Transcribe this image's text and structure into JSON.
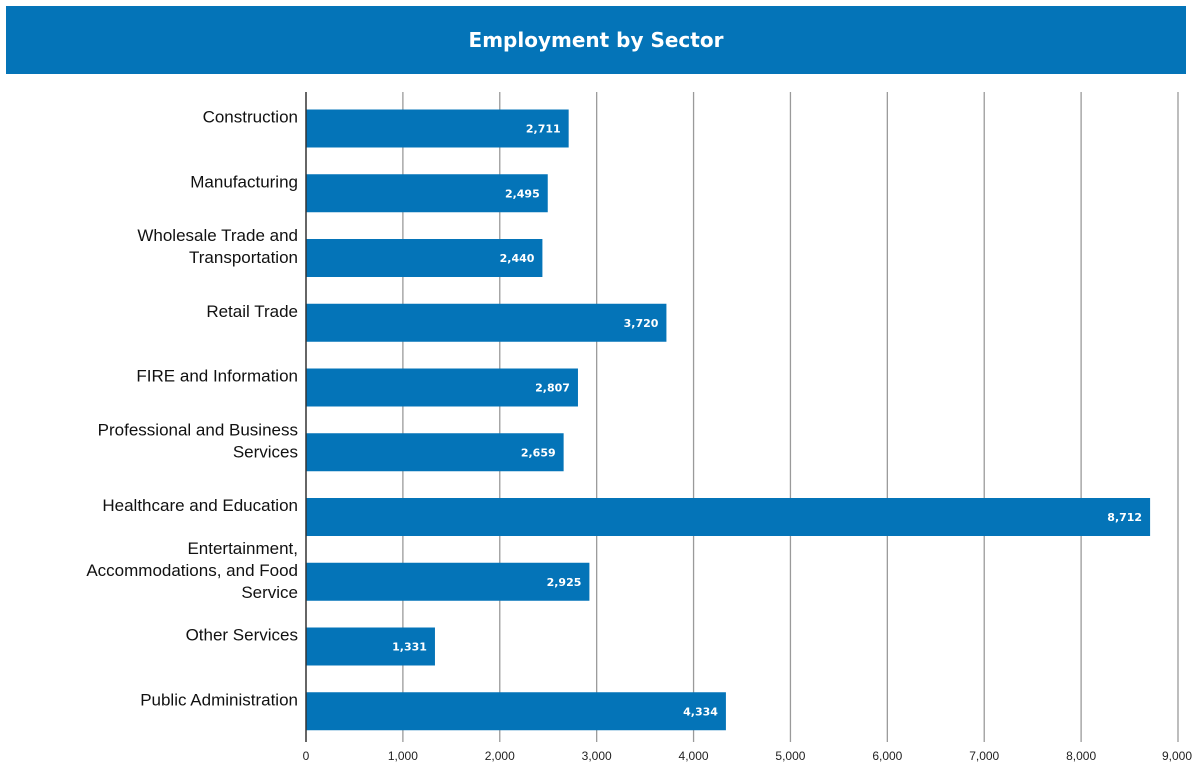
{
  "chart_data": {
    "type": "bar",
    "orientation": "horizontal",
    "title": "Employment by Sector",
    "xlabel": "",
    "ylabel": "",
    "categories": [
      [
        "Construction"
      ],
      [
        "Manufacturing"
      ],
      [
        "Wholesale Trade and",
        "Transportation"
      ],
      [
        "Retail Trade"
      ],
      [
        "FIRE and Information"
      ],
      [
        "Professional and Business",
        "Services"
      ],
      [
        "Healthcare and Education"
      ],
      [
        "Entertainment,",
        "Accommodations, and Food",
        "Service"
      ],
      [
        "Other Services"
      ],
      [
        "Public Administration"
      ]
    ],
    "values": [
      2711,
      2495,
      2440,
      3720,
      2807,
      2659,
      8712,
      2925,
      1331,
      4334
    ],
    "data_labels": [
      "2,711",
      "2,495",
      "2,440",
      "3,720",
      "2,807",
      "2,659",
      "8,712",
      "2,925",
      "1,331",
      "4,334"
    ],
    "xlim": [
      0,
      9000
    ],
    "ticks": [
      0,
      1000,
      2000,
      3000,
      4000,
      5000,
      6000,
      7000,
      8000,
      9000
    ],
    "tick_labels": [
      "0",
      "1,000",
      "2,000",
      "3,000",
      "4,000",
      "5,000",
      "6,000",
      "7,000",
      "8,000",
      "9,000"
    ],
    "grid": "vertical",
    "legend": "none",
    "colors": {
      "bar": "#0474b8",
      "title_background": "#0474b8",
      "title_text": "#ffffff",
      "grid": "#9a9a9a",
      "axis": "#333333"
    }
  }
}
